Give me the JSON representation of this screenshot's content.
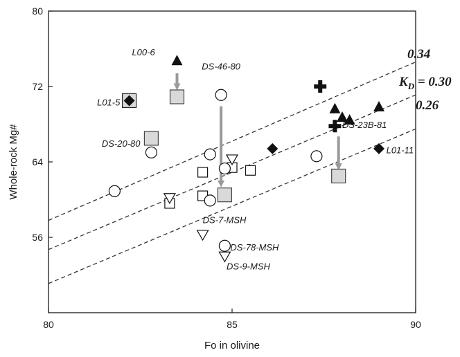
{
  "chart_data": {
    "type": "scatter",
    "xlabel": "Fo in olivine",
    "ylabel": "Whole-rock Mg#",
    "xlim": [
      80,
      90
    ],
    "ylim": [
      48,
      80
    ],
    "xticks": [
      80,
      85,
      90
    ],
    "yticks": [
      56,
      64,
      72,
      80
    ],
    "x_tick_labels": [
      "80",
      "85",
      "90"
    ],
    "y_tick_labels": [
      "56",
      "64",
      "72",
      "80"
    ],
    "grid": false,
    "colors": {
      "filled": "#111111",
      "gray_fill": "#d9d9d9",
      "arrow": "#9a9a9a",
      "line": "#333333"
    },
    "kd_lines": [
      {
        "label": "0.34",
        "points": [
          [
            80,
            57.8
          ],
          [
            90,
            74.6
          ]
        ]
      },
      {
        "label": "K_D = 0.30",
        "points": [
          [
            80,
            54.7
          ],
          [
            90,
            71.1
          ]
        ]
      },
      {
        "label": "0.26",
        "points": [
          [
            80,
            51.1
          ],
          [
            90,
            67.5
          ]
        ]
      }
    ],
    "kd_label_parts": {
      "k": "K",
      "sub": "D",
      "rest": " = 0.30"
    },
    "series": [
      {
        "marker": "diamond",
        "points": [
          [
            82.2,
            70.5
          ],
          [
            86.1,
            65.4
          ],
          [
            89.0,
            65.4
          ]
        ]
      },
      {
        "marker": "triangle",
        "points": [
          [
            83.5,
            74.7
          ],
          [
            87.8,
            69.6
          ],
          [
            88.0,
            68.7
          ],
          [
            88.2,
            68.4
          ],
          [
            89.0,
            69.8
          ]
        ]
      },
      {
        "marker": "plus",
        "points": [
          [
            87.4,
            72.0
          ],
          [
            87.8,
            67.8
          ]
        ]
      },
      {
        "marker": "circle",
        "points": [
          [
            81.8,
            60.9
          ],
          [
            82.8,
            65.0
          ],
          [
            84.4,
            64.8
          ],
          [
            84.7,
            71.1
          ],
          [
            84.8,
            63.3
          ],
          [
            84.4,
            59.9
          ],
          [
            87.3,
            64.6
          ],
          [
            84.8,
            55.1
          ]
        ]
      },
      {
        "marker": "square",
        "points": [
          [
            83.3,
            59.6
          ],
          [
            84.2,
            62.9
          ],
          [
            84.2,
            60.4
          ],
          [
            85.0,
            63.4
          ],
          [
            85.5,
            63.1
          ]
        ]
      },
      {
        "marker": "gray-square",
        "points": [
          [
            82.8,
            66.5
          ],
          [
            83.5,
            70.9
          ],
          [
            84.8,
            60.5
          ],
          [
            87.9,
            62.5
          ]
        ]
      },
      {
        "marker": "triangle-down",
        "points": [
          [
            83.3,
            60.2
          ],
          [
            85.0,
            64.3
          ],
          [
            84.2,
            56.3
          ],
          [
            84.8,
            54.0
          ]
        ]
      },
      {
        "marker": "square-diamond",
        "points": [
          [
            82.2,
            70.5
          ]
        ]
      }
    ],
    "arrows": [
      {
        "from": [
          83.5,
          73.4
        ],
        "to": [
          83.5,
          71.9
        ]
      },
      {
        "from": [
          84.7,
          69.9
        ],
        "to": [
          84.7,
          61.6
        ]
      },
      {
        "from": [
          87.9,
          66.7
        ],
        "to": [
          87.9,
          63.4
        ]
      }
    ],
    "labels": [
      {
        "text": "L00-6",
        "anchor": "end",
        "x": 82.9,
        "y": 75.3
      },
      {
        "text": "L01-5",
        "anchor": "end",
        "x": 81.95,
        "y": 70.0
      },
      {
        "text": "DS-46-80",
        "anchor": "middle",
        "x": 84.7,
        "y": 73.8
      },
      {
        "text": "DS-20-80",
        "anchor": "end",
        "x": 82.5,
        "y": 65.6
      },
      {
        "text": "DS-23B-81",
        "anchor": "start",
        "x": 88.0,
        "y": 67.6
      },
      {
        "text": "L01-11",
        "anchor": "start",
        "x": 89.2,
        "y": 64.9
      },
      {
        "text": "DS-7-MSH",
        "anchor": "start",
        "x": 84.2,
        "y": 57.5
      },
      {
        "text": "DS-78-MSH",
        "anchor": "start",
        "x": 84.95,
        "y": 54.6
      },
      {
        "text": "DS-9-MSH",
        "anchor": "start",
        "x": 84.85,
        "y": 52.6
      }
    ]
  }
}
